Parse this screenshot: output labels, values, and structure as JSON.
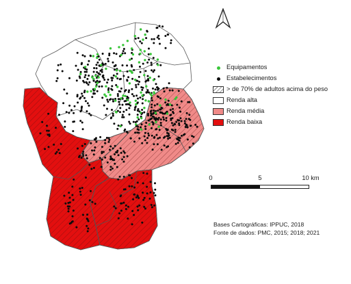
{
  "colors": {
    "equipamentos": "#39c639",
    "estabelecimentos": "#0c0c0c",
    "renda_alta": "#ffffff",
    "renda_media": "#f08a88",
    "renda_baixa": "#e30f0f",
    "boundary": "#555555"
  },
  "legend": {
    "equipamentos": "Equipamentos",
    "estabelecimentos": "Estabelecimentos",
    "hatch": "> de 70% de adultos acima do peso",
    "renda_alta": "Renda alta",
    "renda_media": "Renda média",
    "renda_baixa": "Renda baixa"
  },
  "scale": {
    "tick0": "0",
    "tick1": "5",
    "tick2": "10 km"
  },
  "credits": {
    "line1": "Bases Cartográficas: IPPUC, 2018",
    "line2": "Fonte de dados: PMC, 2015; 2018; 2021"
  },
  "north_icon": "north-arrow-icon"
}
